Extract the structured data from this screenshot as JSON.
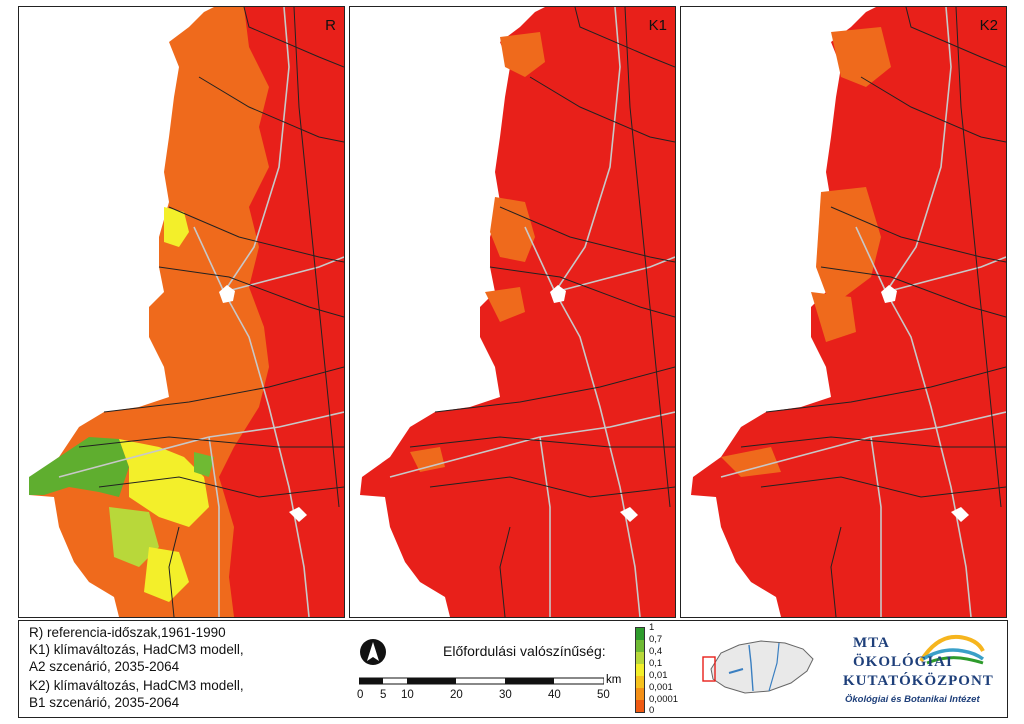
{
  "panels": [
    {
      "label": "R"
    },
    {
      "label": "K1"
    },
    {
      "label": "K2"
    }
  ],
  "legend_text": [
    "R) referencia-időszak,1961-1990",
    "K1) klímaváltozás, HadCM3 modell,",
    "A2 szcenárió, 2035-2064",
    "K2) klímaváltozás, HadCM3 modell,",
    "B1 szcenárió, 2035-2064"
  ],
  "scale": {
    "title": "Előfordulási valószínűség:",
    "unit": "km",
    "ticks": [
      "0",
      "5",
      "10",
      "20",
      "30",
      "40",
      "50"
    ]
  },
  "color_ramp": {
    "labels": [
      "1",
      "0,7",
      "0,4",
      "0,1",
      "0,01",
      "0,001",
      "0,0001",
      "0"
    ],
    "colors": [
      "#2e9b2c",
      "#6fba33",
      "#b8d83a",
      "#f3ef2a",
      "#f6c21e",
      "#f49017",
      "#ef5a13",
      "#e8201a"
    ]
  },
  "logo": {
    "line1": "MTA",
    "line2": "ÖKOLÓGIAI",
    "line3": "KUTATÓKÖZPONT",
    "subtitle": "Ökológiai és Botanikai Intézet"
  },
  "colors": {
    "red": "#e8201a",
    "orange": "#ef6a1c",
    "yellow": "#f3ef2a",
    "green": "#5fae2f",
    "roads": "#c8c8c8",
    "borders": "#222222"
  }
}
